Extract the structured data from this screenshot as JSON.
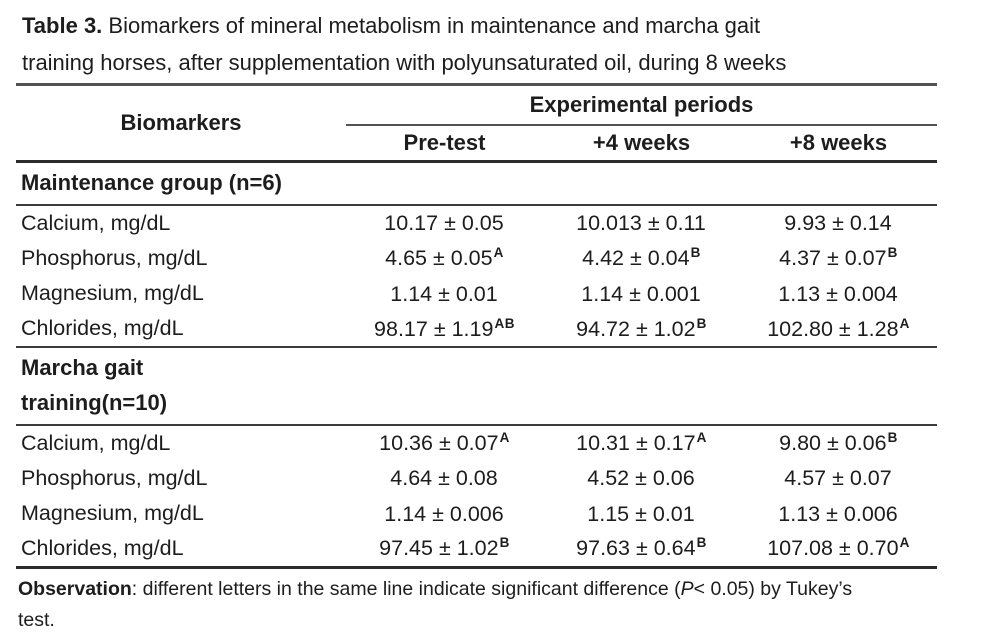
{
  "caption": {
    "label": "Table 3.",
    "line1_rest": " Biomarkers of mineral metabolism in maintenance and marcha gait",
    "line2": "training horses, after supplementation with polyunsaturated oil, during 8 weeks"
  },
  "table": {
    "col_header": "Biomarkers",
    "span_header": "Experimental periods",
    "period_headers": [
      "Pre-test",
      "+4 weeks",
      "+8 weeks"
    ],
    "sections": [
      {
        "header_lines": [
          "Maintenance group (n=6)"
        ],
        "rows": [
          {
            "biomarker": "Calcium, mg/dL",
            "values": [
              {
                "text": "10.17 ± 0.05",
                "sup": ""
              },
              {
                "text": "10.013 ± 0.11",
                "sup": ""
              },
              {
                "text": "9.93 ± 0.14",
                "sup": ""
              }
            ]
          },
          {
            "biomarker": "Phosphorus, mg/dL",
            "values": [
              {
                "text": "4.65 ± 0.05",
                "sup": "A"
              },
              {
                "text": "4.42 ± 0.04",
                "sup": "B"
              },
              {
                "text": "4.37 ± 0.07",
                "sup": "B"
              }
            ]
          },
          {
            "biomarker": "Magnesium, mg/dL",
            "values": [
              {
                "text": "1.14 ± 0.01",
                "sup": ""
              },
              {
                "text": "1.14 ± 0.001",
                "sup": ""
              },
              {
                "text": "1.13 ± 0.004",
                "sup": ""
              }
            ]
          },
          {
            "biomarker": "Chlorides, mg/dL",
            "values": [
              {
                "text": "98.17 ± 1.19",
                "sup": "AB"
              },
              {
                "text": "94.72 ± 1.02",
                "sup": "B"
              },
              {
                "text": "102.80 ± 1.28",
                "sup": "A"
              }
            ]
          }
        ]
      },
      {
        "header_lines": [
          "Marcha gait",
          "training(n=10)"
        ],
        "rows": [
          {
            "biomarker": "Calcium, mg/dL",
            "values": [
              {
                "text": "10.36 ± 0.07",
                "sup": "A"
              },
              {
                "text": "10.31 ± 0.17",
                "sup": "A"
              },
              {
                "text": "9.80 ± 0.06",
                "sup": "B"
              }
            ]
          },
          {
            "biomarker": "Phosphorus, mg/dL",
            "values": [
              {
                "text": "4.64 ± 0.08",
                "sup": ""
              },
              {
                "text": "4.52 ± 0.06",
                "sup": ""
              },
              {
                "text": "4.57 ± 0.07",
                "sup": ""
              }
            ]
          },
          {
            "biomarker": "Magnesium, mg/dL",
            "values": [
              {
                "text": "1.14 ± 0.006",
                "sup": ""
              },
              {
                "text": "1.15 ± 0.01",
                "sup": ""
              },
              {
                "text": "1.13 ± 0.006",
                "sup": ""
              }
            ]
          },
          {
            "biomarker": "Chlorides, mg/dL",
            "values": [
              {
                "text": "97.45 ± 1.02",
                "sup": "B"
              },
              {
                "text": "97.63 ± 0.64",
                "sup": "B"
              },
              {
                "text": "107.08 ± 0.70",
                "sup": "A"
              }
            ]
          }
        ]
      }
    ]
  },
  "footnote": {
    "label": "Observation",
    "text_a": ": different letters in the same line indicate significant difference (",
    "p": "P",
    "text_b": "< 0.05) by Tukey’s",
    "line2": "test."
  }
}
